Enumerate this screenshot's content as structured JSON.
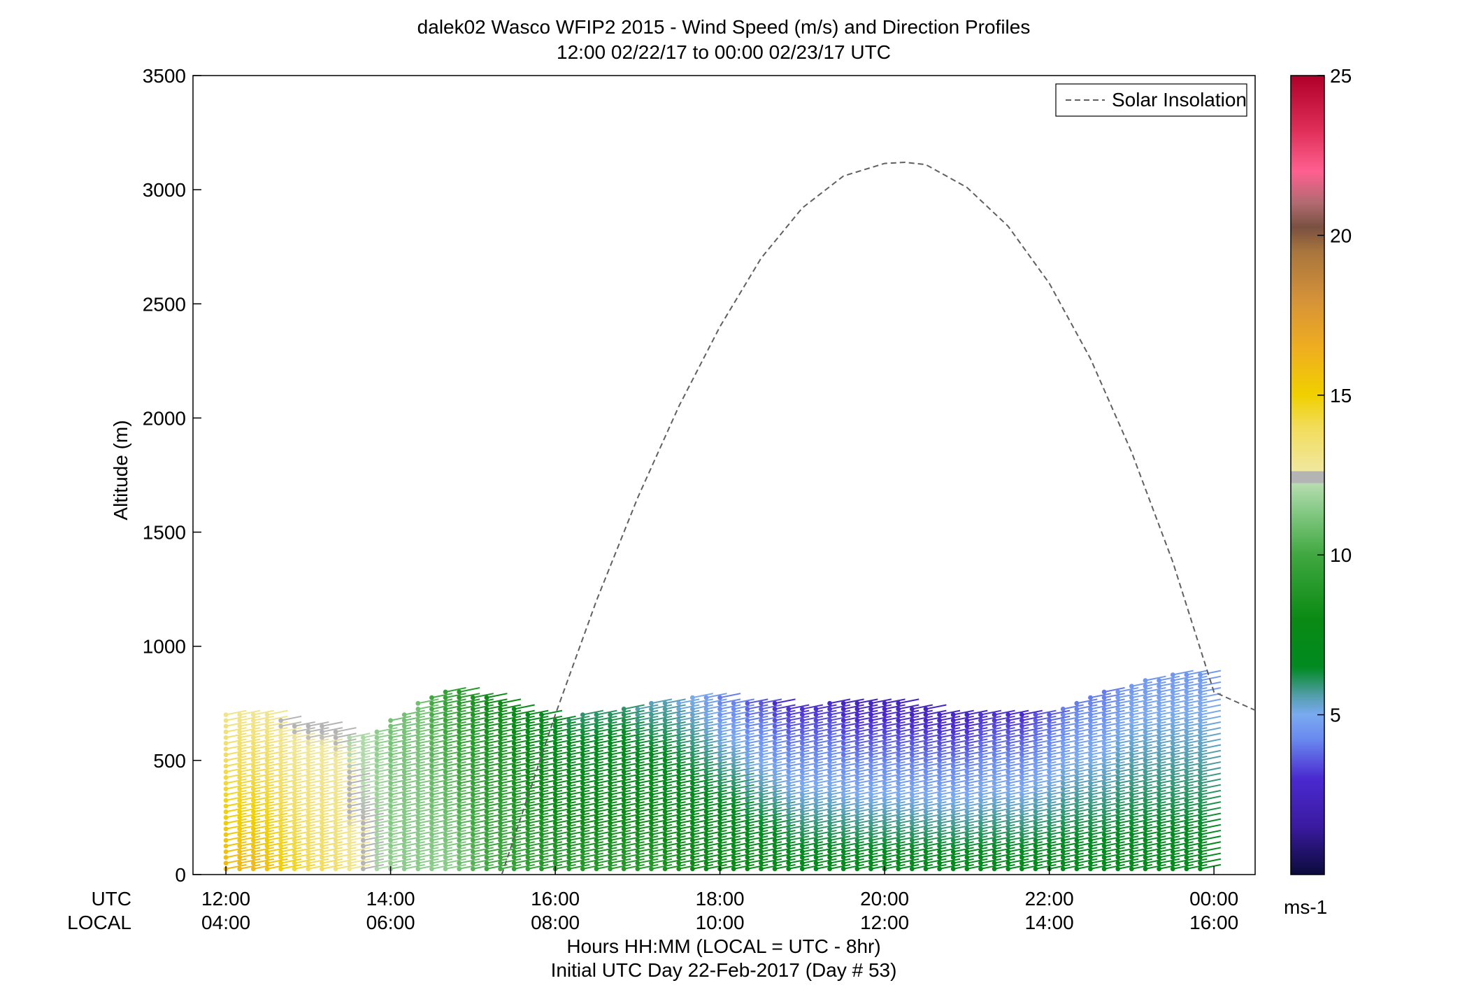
{
  "chart_data": {
    "type": "wind-barb-profile",
    "title": "dalek02 Wasco WFIP2 2015 - Wind Speed (m/s) and Direction Profiles",
    "subtitle": "12:00 02/22/17 to 00:00 02/23/17  UTC",
    "ylabel": "Altitude (m)",
    "ylim": [
      0,
      3500
    ],
    "yticks": [
      0,
      500,
      1000,
      1500,
      2000,
      2500,
      3000,
      3500
    ],
    "xlim_hours": [
      11.6,
      24.5
    ],
    "xticks_hours": [
      12,
      14,
      16,
      18,
      20,
      22,
      24
    ],
    "xtick_labels_utc": [
      "12:00",
      "14:00",
      "16:00",
      "18:00",
      "20:00",
      "22:00",
      "00:00"
    ],
    "xtick_labels_local": [
      "04:00",
      "06:00",
      "08:00",
      "10:00",
      "12:00",
      "14:00",
      "16:00"
    ],
    "x_row_label_utc": "UTC",
    "x_row_label_local": "LOCAL",
    "xlabel": "Hours HH:MM  (LOCAL = UTC - 8hr)",
    "xlabel2": "Initial UTC Day 22-Feb-2017 (Day # 53)",
    "legend": {
      "entries": [
        "Solar Insolation"
      ],
      "position": "top-right"
    },
    "colorbar": {
      "min": 0,
      "max": 25,
      "ticks": [
        5,
        10,
        15,
        20,
        25
      ],
      "unit": "ms-1"
    },
    "solar_insolation_curve": {
      "hours": [
        15.35,
        16.0,
        16.5,
        17.0,
        17.5,
        18.0,
        18.5,
        19.0,
        19.5,
        20.0,
        20.25,
        20.5,
        21.0,
        21.5,
        22.0,
        22.5,
        23.0,
        23.5,
        24.0,
        24.5
      ],
      "altitude_m": [
        0,
        700,
        1200,
        1650,
        2050,
        2400,
        2700,
        2920,
        3060,
        3115,
        3120,
        3110,
        3010,
        2840,
        2590,
        2260,
        1850,
        1370,
        800,
        720
      ]
    },
    "wind_profiles": {
      "time_hours": [
        12.0,
        12.1667,
        12.3333,
        12.5,
        12.6667,
        12.8333,
        13.0,
        13.1667,
        13.3333,
        13.5,
        13.6667,
        13.8333,
        14.0,
        14.1667,
        14.3333,
        14.5,
        14.6667,
        14.8333,
        15.0,
        15.1667,
        15.3333,
        15.5,
        15.6667,
        15.8333,
        16.0,
        16.1667,
        16.3333,
        16.5,
        16.6667,
        16.8333,
        17.0,
        17.1667,
        17.3333,
        17.5,
        17.6667,
        17.8333,
        18.0,
        18.1667,
        18.3333,
        18.5,
        18.6667,
        18.8333,
        19.0,
        19.1667,
        19.3333,
        19.5,
        19.6667,
        19.8333,
        20.0,
        20.1667,
        20.3333,
        20.5,
        20.6667,
        20.8333,
        21.0,
        21.1667,
        21.3333,
        21.5,
        21.6667,
        21.8333,
        22.0,
        22.1667,
        22.3333,
        22.5,
        22.6667,
        22.8333,
        23.0,
        23.1667,
        23.3333,
        23.5,
        23.6667,
        23.8333
      ],
      "min_altitude_m": 25,
      "gate_spacing_m": 25,
      "top_altitude_m": [
        720,
        710,
        710,
        700,
        680,
        660,
        650,
        650,
        640,
        620,
        610,
        630,
        680,
        720,
        760,
        780,
        800,
        800,
        790,
        780,
        760,
        740,
        720,
        700,
        690,
        690,
        700,
        710,
        720,
        730,
        740,
        750,
        760,
        770,
        780,
        790,
        780,
        770,
        760,
        760,
        750,
        740,
        740,
        740,
        750,
        760,
        760,
        760,
        760,
        750,
        740,
        730,
        720,
        720,
        720,
        720,
        710,
        700,
        700,
        710,
        720,
        740,
        760,
        780,
        800,
        820,
        840,
        860,
        870,
        880,
        880,
        880
      ],
      "start_speed_ms": [
        16,
        16,
        16,
        15.5,
        15,
        14.5,
        14,
        14,
        13.5,
        13,
        12.5,
        12,
        11.5,
        11.5,
        11.5,
        11.5,
        11.5,
        11,
        10.5,
        10,
        10,
        9.5,
        9.5,
        9,
        9,
        9,
        9,
        9,
        9,
        9,
        9,
        9,
        8.5,
        8.5,
        8,
        8,
        8,
        8,
        7.5,
        7.5,
        7.5,
        7,
        7,
        7,
        7,
        7,
        7,
        7,
        7,
        7,
        7,
        7,
        7,
        7,
        7,
        7,
        7,
        7,
        7,
        7,
        7,
        7,
        7,
        7,
        7,
        7,
        7,
        7,
        7,
        7,
        7,
        7
      ],
      "end_speed_ms": [
        13,
        13,
        13,
        13,
        12.5,
        12.5,
        12.5,
        12.5,
        12.5,
        12,
        12,
        11.5,
        11,
        11,
        11,
        10,
        9.5,
        9,
        8.5,
        8,
        8,
        7.5,
        7,
        7,
        6.5,
        6,
        6,
        6,
        6,
        6,
        5.5,
        5.5,
        5.5,
        5,
        5,
        4.5,
        4,
        4,
        3.5,
        3.5,
        3,
        3,
        3,
        3,
        3,
        2.5,
        2.5,
        2.5,
        2.5,
        2.5,
        2.5,
        2.5,
        2.5,
        2.5,
        2.5,
        3,
        3,
        3,
        3,
        3.5,
        3.5,
        4,
        4,
        4,
        4,
        4.5,
        4.5,
        4.5,
        4.5,
        4.5,
        4.5,
        4.5
      ],
      "direction_deg": 300
    }
  }
}
